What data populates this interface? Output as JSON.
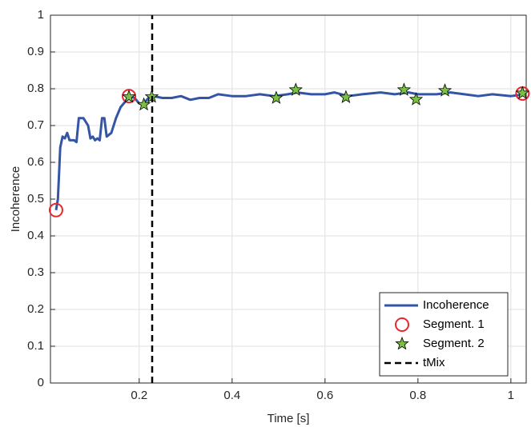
{
  "chart_data": {
    "type": "line",
    "xlabel": "Time [s]",
    "ylabel": "Incoherence",
    "xlim": [
      0.009,
      1.033
    ],
    "ylim": [
      0,
      1
    ],
    "xticks": [
      0.2,
      0.4,
      0.6,
      0.8,
      1
    ],
    "yticks": [
      0,
      0.1,
      0.2,
      0.3,
      0.4,
      0.5,
      0.6,
      0.7,
      0.8,
      0.9,
      1
    ],
    "grid": true,
    "legend": "lower right",
    "series": [
      {
        "name": "Incoherence",
        "color": "#3455a4",
        "style": "line",
        "x": [
          0.021,
          0.025,
          0.03,
          0.035,
          0.04,
          0.045,
          0.05,
          0.06,
          0.065,
          0.07,
          0.08,
          0.09,
          0.095,
          0.1,
          0.105,
          0.11,
          0.115,
          0.12,
          0.125,
          0.13,
          0.14,
          0.15,
          0.16,
          0.17,
          0.178,
          0.19,
          0.2,
          0.21,
          0.22,
          0.23,
          0.25,
          0.27,
          0.29,
          0.31,
          0.33,
          0.35,
          0.37,
          0.4,
          0.43,
          0.46,
          0.49,
          0.52,
          0.54,
          0.57,
          0.6,
          0.62,
          0.65,
          0.68,
          0.72,
          0.75,
          0.78,
          0.8,
          0.84,
          0.87,
          0.9,
          0.93,
          0.96,
          1.0,
          1.03
        ],
        "values": [
          0.47,
          0.5,
          0.64,
          0.67,
          0.665,
          0.68,
          0.66,
          0.66,
          0.655,
          0.72,
          0.72,
          0.7,
          0.665,
          0.67,
          0.66,
          0.665,
          0.66,
          0.72,
          0.72,
          0.67,
          0.68,
          0.72,
          0.75,
          0.765,
          0.78,
          0.775,
          0.76,
          0.76,
          0.775,
          0.78,
          0.775,
          0.775,
          0.78,
          0.77,
          0.775,
          0.775,
          0.785,
          0.78,
          0.78,
          0.785,
          0.78,
          0.785,
          0.79,
          0.785,
          0.785,
          0.79,
          0.78,
          0.785,
          0.79,
          0.785,
          0.79,
          0.785,
          0.785,
          0.79,
          0.785,
          0.78,
          0.785,
          0.78,
          0.785
        ]
      },
      {
        "name": "Segment. 1",
        "color": "#e8262b",
        "style": "circle",
        "x": [
          0.021,
          0.178,
          1.025
        ],
        "values": [
          0.47,
          0.78,
          0.787
        ]
      },
      {
        "name": "Segment. 2",
        "color": "#7ac143",
        "style": "star",
        "x": [
          0.178,
          0.21,
          0.227,
          0.495,
          0.537,
          0.645,
          0.77,
          0.796,
          0.858,
          1.025
        ],
        "values": [
          0.778,
          0.757,
          0.778,
          0.775,
          0.797,
          0.777,
          0.797,
          0.771,
          0.795,
          0.788
        ]
      },
      {
        "name": "tMix",
        "color": "#000000",
        "style": "dashed",
        "x": [
          0.228,
          0.228
        ],
        "values": [
          0,
          1
        ]
      }
    ]
  }
}
